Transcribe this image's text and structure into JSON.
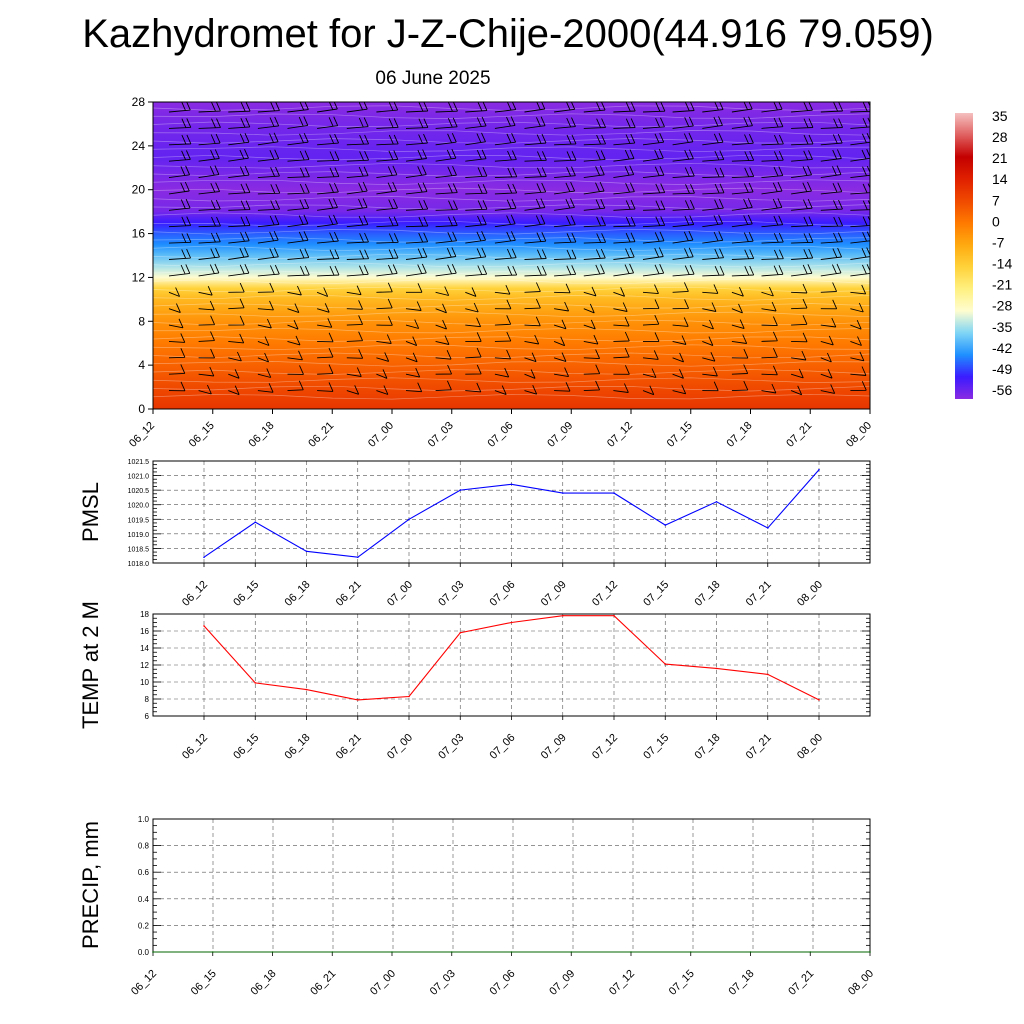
{
  "title": "Kazhydromet for J-Z-Chije-2000(44.916 79.059)",
  "subtitle": "06 June 2025",
  "chart_data": [
    {
      "type": "heatmap",
      "name": "cross-section",
      "x_ticks": [
        "06_12",
        "06_15",
        "06_18",
        "06_21",
        "07_00",
        "07_03",
        "07_06",
        "07_09",
        "07_12",
        "07_15",
        "07_18",
        "07_21",
        "08_00"
      ],
      "ylim": [
        0,
        28
      ],
      "y_ticks": [
        "0",
        "4",
        "8",
        "12",
        "16",
        "20",
        "24",
        "28"
      ],
      "colorbar_labels": [
        "35",
        "28",
        "21",
        "14",
        "7",
        "0",
        "-7",
        "-14",
        "-21",
        "-28",
        "-35",
        "-42",
        "-49",
        "-56"
      ],
      "profile": {
        "y": [
          0,
          2,
          4,
          6,
          8,
          10,
          11,
          12,
          13,
          14,
          15,
          16,
          17,
          18,
          20,
          23,
          26,
          28
        ],
        "value": [
          16,
          14,
          12,
          10,
          8,
          4,
          0,
          -14,
          -22,
          -30,
          -38,
          -44,
          -52,
          -58,
          -60,
          -56,
          -58,
          -60
        ]
      },
      "colors": [
        "#8a2be2",
        "#3b1bff",
        "#1e8fff",
        "#7fd5f5",
        "#fff6a0",
        "#ffc61a",
        "#ff7a00",
        "#e62a00",
        "#c40000",
        "#f0a0a0"
      ]
    },
    {
      "type": "line",
      "ylabel": "PMSL",
      "x": [
        "06_12",
        "06_15",
        "06_18",
        "06_21",
        "07_00",
        "07_03",
        "07_06",
        "07_09",
        "07_12",
        "07_15",
        "07_18",
        "07_21",
        "08_00"
      ],
      "values": [
        1018.2,
        1019.4,
        1018.4,
        1018.2,
        1019.5,
        1020.5,
        1020.7,
        1020.4,
        1020.4,
        1019.3,
        1020.1,
        1019.2,
        1021.2
      ],
      "ylim": [
        1018.0,
        1021.5
      ],
      "y_ticks": [
        "1018.0",
        "1018.5",
        "1019.0",
        "1019.5",
        "1020.0",
        "1020.5",
        "1021.0",
        "1021.5"
      ],
      "color": "#0000ff",
      "grid": true
    },
    {
      "type": "line",
      "ylabel": "TEMP at 2 M",
      "x": [
        "06_12",
        "06_15",
        "06_18",
        "06_21",
        "07_00",
        "07_03",
        "07_06",
        "07_09",
        "07_12",
        "07_15",
        "07_18",
        "07_21",
        "08_00"
      ],
      "values": [
        16.6,
        9.9,
        9.1,
        7.9,
        8.3,
        15.8,
        17.0,
        17.8,
        17.8,
        12.1,
        11.6,
        10.9,
        7.9
      ],
      "ylim": [
        6,
        18
      ],
      "y_ticks": [
        "6",
        "8",
        "10",
        "12",
        "14",
        "16",
        "18"
      ],
      "color": "#ff0000",
      "grid": true
    },
    {
      "type": "line",
      "ylabel": "PRECIP, mm",
      "x": [
        "06_12",
        "06_15",
        "06_18",
        "06_21",
        "07_00",
        "07_03",
        "07_06",
        "07_09",
        "07_12",
        "07_15",
        "07_18",
        "07_21",
        "08_00"
      ],
      "values": [
        0,
        0,
        0,
        0,
        0,
        0,
        0,
        0,
        0,
        0,
        0,
        0,
        0
      ],
      "ylim": [
        0.0,
        1.0
      ],
      "y_ticks": [
        "0.0",
        "0.2",
        "0.4",
        "0.6",
        "0.8",
        "1.0"
      ],
      "color": "#006400",
      "grid": true
    }
  ]
}
